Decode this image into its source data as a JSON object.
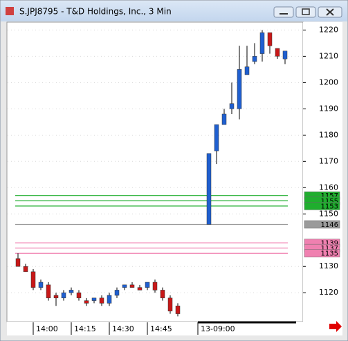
{
  "chart_data": {
    "type": "candlestick",
    "title": "S.JPJ8795 - T&D Holdings, Inc., 3 Min",
    "categories": [
      null,
      null,
      "14:00",
      null,
      null,
      null,
      null,
      "14:15",
      null,
      null,
      null,
      null,
      "14:30",
      null,
      null,
      null,
      null,
      "14:45",
      null,
      null,
      null,
      null,
      "13-09:00",
      null,
      null,
      null,
      null,
      null,
      null,
      null,
      null,
      null,
      null
    ],
    "open": [
      1133,
      1130,
      1128,
      1122,
      1123,
      1119,
      1118,
      1120,
      1120,
      1117,
      1117,
      1118,
      1116,
      1119,
      1122,
      1123,
      1122,
      1122,
      1124,
      1121,
      1118,
      1115,
      1146,
      1174,
      1184,
      1190,
      1190,
      1203,
      1208,
      1211,
      1219,
      1213,
      1209
    ],
    "high": [
      1135,
      1131,
      1129,
      1125,
      1124,
      1120,
      1121,
      1122,
      1121,
      1118,
      1118,
      1119,
      1120,
      1122,
      1123,
      1124,
      1123,
      1124,
      1125,
      1122,
      1119,
      1116,
      1173,
      1184,
      1190,
      1200,
      1214,
      1214,
      1215,
      1220,
      1219,
      1213,
      1212
    ],
    "low": [
      1130,
      1128,
      1121,
      1121,
      1117,
      1115,
      1117,
      1119,
      1117,
      1115,
      1116,
      1115,
      1115,
      1118,
      1121,
      1122,
      1121,
      1121,
      1120,
      1117,
      1112,
      1111,
      1146,
      1169,
      1184,
      1188,
      1186,
      1203,
      1207,
      1208,
      1211,
      1209,
      1207
    ],
    "close": [
      1130,
      1128,
      1122,
      1124,
      1118,
      1118,
      1120,
      1121,
      1118,
      1116,
      1118,
      1116,
      1119,
      1121,
      1123,
      1122,
      1121,
      1124,
      1121,
      1118,
      1113,
      1112,
      1173,
      1184,
      1188,
      1192,
      1205,
      1206,
      1210,
      1219,
      1214,
      1210,
      1212
    ],
    "up_color": "#1f5fd0",
    "down_color": "#c81818",
    "ylim": [
      1109,
      1223
    ],
    "yticks": [
      1120,
      1130,
      1150,
      1160,
      1170,
      1180,
      1190,
      1200,
      1210,
      1220
    ],
    "levels": [
      {
        "value": 1157,
        "color": "#1fae2e"
      },
      {
        "value": 1155,
        "color": "#1fae2e"
      },
      {
        "value": 1153,
        "color": "#1fae2e"
      },
      {
        "value": 1146,
        "color": "#9a9a9a"
      },
      {
        "value": 1139,
        "color": "#f080b0"
      },
      {
        "value": 1137,
        "color": "#f080b0"
      },
      {
        "value": 1135,
        "color": "#f080b0"
      }
    ]
  }
}
